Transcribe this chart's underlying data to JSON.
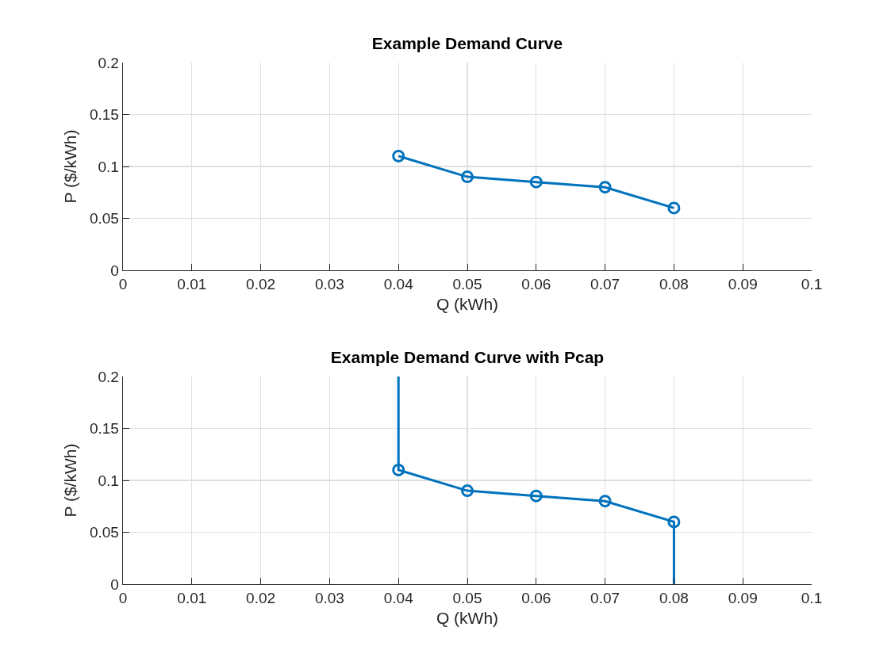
{
  "chart_data": [
    {
      "type": "line",
      "title": "Example Demand Curve",
      "xlabel": "Q (kWh)",
      "ylabel": "P ($/kWh)",
      "x": [
        0.04,
        0.05,
        0.06,
        0.07,
        0.08
      ],
      "series": [
        {
          "color": "#0072bd",
          "values": [
            0.11,
            0.09,
            0.085,
            0.08,
            0.06
          ]
        }
      ],
      "xlim": [
        0,
        0.1
      ],
      "xticks": [
        0,
        0.01,
        0.02,
        0.03,
        0.04,
        0.05,
        0.06,
        0.07,
        0.08,
        0.09,
        0.1
      ],
      "ylim": [
        0,
        0.2
      ],
      "yticks": [
        0,
        0.05,
        0.1,
        0.15,
        0.2
      ],
      "grid": true,
      "marker": "circle",
      "line_style": "solid"
    },
    {
      "type": "line",
      "title": "Example Demand Curve with Pcap",
      "xlabel": "Q (kWh)",
      "ylabel": "P ($/kWh)",
      "x": [
        0.04,
        0.05,
        0.06,
        0.07,
        0.08
      ],
      "series": [
        {
          "color": "#0072bd",
          "x": [
            0.04,
            0.04,
            0.05,
            0.06,
            0.07,
            0.08,
            0.08
          ],
          "values": [
            0.2,
            0.11,
            0.09,
            0.085,
            0.08,
            0.06,
            0
          ],
          "marker": "none"
        },
        {
          "type": "scatter",
          "color": "#0072bd",
          "values": [
            0.11,
            0.09,
            0.085,
            0.08,
            0.06
          ]
        }
      ],
      "xlim": [
        0,
        0.1
      ],
      "xticks": [
        0,
        0.01,
        0.02,
        0.03,
        0.04,
        0.05,
        0.06,
        0.07,
        0.08,
        0.09,
        0.1
      ],
      "ylim": [
        0,
        0.2
      ],
      "yticks": [
        0,
        0.05,
        0.1,
        0.15,
        0.2
      ],
      "grid": true,
      "marker": "circle",
      "line_style": "solid"
    }
  ]
}
